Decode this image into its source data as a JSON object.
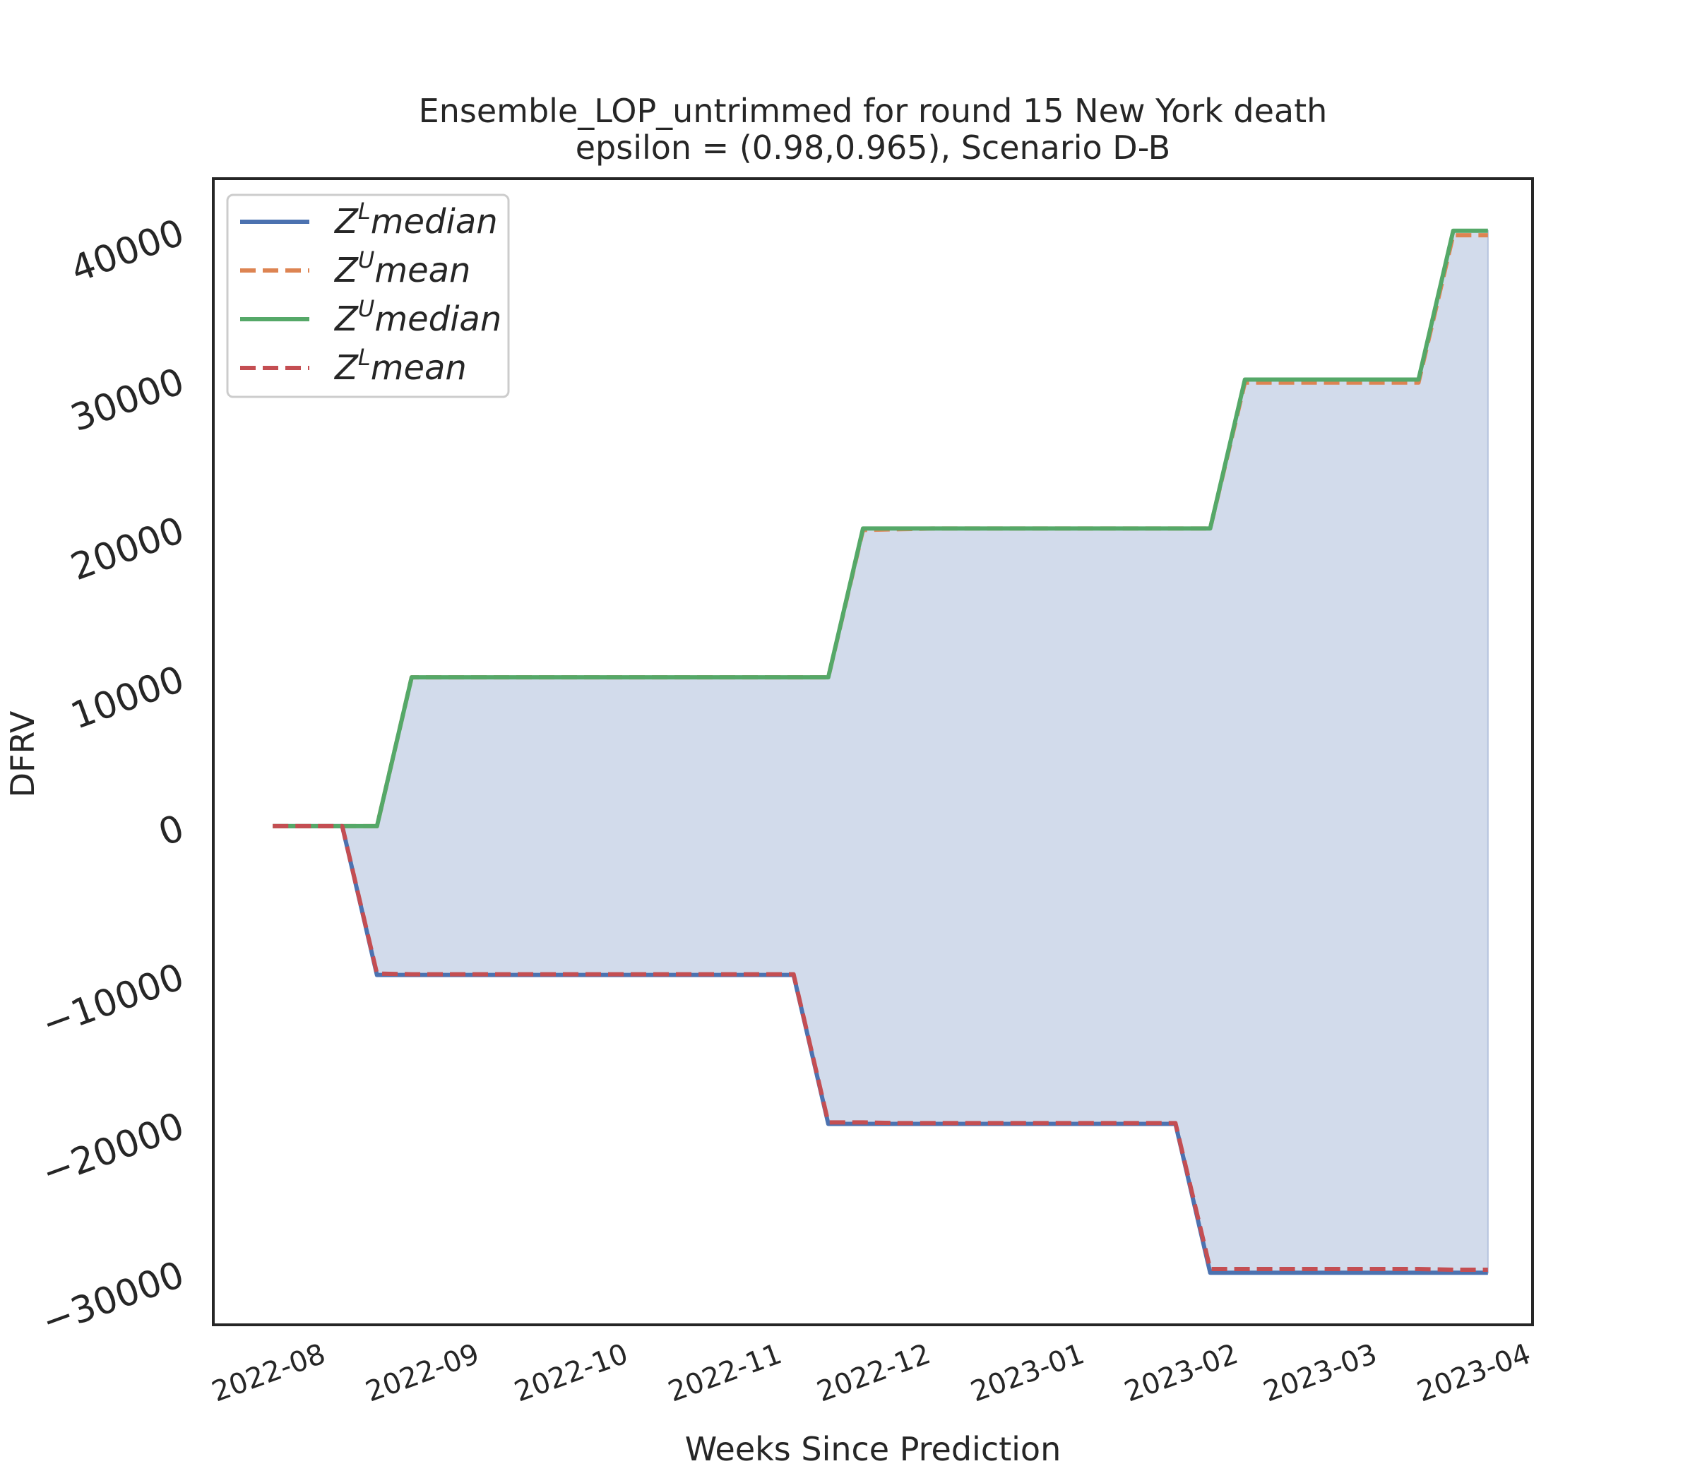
{
  "chart_data": {
    "type": "line",
    "title_line1": "Ensemble_LOP_untrimmed for round 15 New York  death",
    "title_line2": "epsilon = (0.98,0.965), Scenario D-B",
    "xlabel": "Weeks Since Prediction",
    "ylabel": "DFRV",
    "x_tick_labels": [
      "2022-08",
      "2022-09",
      "2022-10",
      "2022-11",
      "2022-12",
      "2023-01",
      "2023-02",
      "2023-03",
      "2023-04"
    ],
    "x_tick_dates": [
      "2022-08-01",
      "2022-09-01",
      "2022-10-01",
      "2022-11-01",
      "2022-12-01",
      "2023-01-01",
      "2023-02-01",
      "2023-03-01",
      "2023-04-01"
    ],
    "y_ticks": [
      -30000,
      -20000,
      -10000,
      0,
      10000,
      20000,
      30000,
      40000
    ],
    "y_tick_labels": [
      "−30000",
      "−20000",
      "−10000",
      "0",
      "10000",
      "20000",
      "30000",
      "40000"
    ],
    "xlim": [
      "2022-07-11",
      "2023-04-03"
    ],
    "ylim": [
      -33500,
      43500
    ],
    "grid": false,
    "legend_position": "upper left",
    "fill_between": {
      "lower": "Z^L median",
      "upper": "Z^U median",
      "color": "#d2dbeb"
    },
    "x": [
      "2022-07-23",
      "2022-07-30",
      "2022-08-06",
      "2022-08-13",
      "2022-08-20",
      "2022-08-27",
      "2022-09-03",
      "2022-09-10",
      "2022-09-17",
      "2022-09-24",
      "2022-10-01",
      "2022-10-08",
      "2022-10-15",
      "2022-10-22",
      "2022-10-29",
      "2022-11-05",
      "2022-11-12",
      "2022-11-19",
      "2022-11-26",
      "2022-12-03",
      "2022-12-10",
      "2022-12-17",
      "2022-12-24",
      "2022-12-31",
      "2023-01-07",
      "2023-01-14",
      "2023-01-21",
      "2023-01-28",
      "2023-02-04",
      "2023-02-11",
      "2023-02-18",
      "2023-02-25",
      "2023-03-04",
      "2023-03-11",
      "2023-03-18",
      "2023-03-25"
    ],
    "series": [
      {
        "name": "Z^L median",
        "legend_base": "Z",
        "legend_sup": "L",
        "legend_rest": "median",
        "color": "#4c72b0",
        "dash": "solid",
        "values": [
          0,
          0,
          0,
          -10000,
          -10000,
          -10000,
          -10000,
          -10000,
          -10000,
          -10000,
          -10000,
          -10000,
          -10000,
          -10000,
          -10000,
          -10000,
          -20000,
          -20000,
          -20000,
          -20000,
          -20000,
          -20000,
          -20000,
          -20000,
          -20000,
          -20000,
          -20000,
          -30000,
          -30000,
          -30000,
          -30000,
          -30000,
          -30000,
          -30000,
          -30000,
          -30000
        ]
      },
      {
        "name": "Z^U mean",
        "legend_base": "Z",
        "legend_sup": "U",
        "legend_rest": "mean",
        "color": "#dd8452",
        "dash": "dashed",
        "values": [
          0,
          0,
          0,
          0,
          10000,
          10000,
          10000,
          10000,
          10000,
          10000,
          10000,
          10000,
          10000,
          10000,
          10000,
          10000,
          10000,
          19900,
          19950,
          20000,
          20000,
          20000,
          20000,
          20000,
          20000,
          20000,
          20000,
          20000,
          29800,
          29800,
          29800,
          29800,
          29800,
          29800,
          39700,
          39700
        ]
      },
      {
        "name": "Z^U median",
        "legend_base": "Z",
        "legend_sup": "U",
        "legend_rest": "median",
        "color": "#55a868",
        "dash": "solid",
        "values": [
          0,
          0,
          0,
          0,
          10000,
          10000,
          10000,
          10000,
          10000,
          10000,
          10000,
          10000,
          10000,
          10000,
          10000,
          10000,
          10000,
          20000,
          20000,
          20000,
          20000,
          20000,
          20000,
          20000,
          20000,
          20000,
          20000,
          20000,
          30000,
          30000,
          30000,
          30000,
          30000,
          30000,
          40000,
          40000
        ]
      },
      {
        "name": "Z^L mean",
        "legend_base": "Z",
        "legend_sup": "L",
        "legend_rest": "mean",
        "color": "#c44e52",
        "dash": "dashed",
        "values": [
          0,
          0,
          0,
          -9900,
          -9950,
          -9950,
          -9950,
          -9950,
          -9950,
          -9950,
          -9950,
          -9950,
          -9950,
          -9950,
          -9950,
          -9950,
          -19900,
          -19900,
          -19950,
          -19950,
          -19950,
          -19950,
          -19950,
          -19950,
          -19950,
          -19950,
          -19950,
          -29750,
          -29750,
          -29750,
          -29750,
          -29750,
          -29750,
          -29750,
          -29800,
          -29800
        ]
      }
    ]
  }
}
